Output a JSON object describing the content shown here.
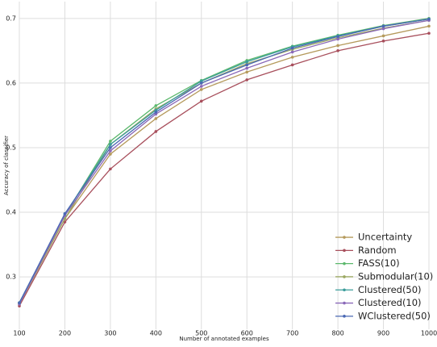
{
  "chart_data": {
    "type": "line",
    "x_label": "Number of annotated examples",
    "y_label": "Accuracy of classifier",
    "x": [
      100,
      200,
      300,
      400,
      500,
      600,
      700,
      800,
      900,
      1000
    ],
    "series": [
      {
        "name": "Uncertainty",
        "color": "#b59a5c",
        "values": [
          0.26,
          0.39,
          0.49,
          0.545,
          0.59,
          0.617,
          0.64,
          0.658,
          0.673,
          0.688
        ]
      },
      {
        "name": "Random",
        "color": "#a84f5c",
        "values": [
          0.255,
          0.385,
          0.467,
          0.525,
          0.572,
          0.605,
          0.628,
          0.65,
          0.665,
          0.677
        ]
      },
      {
        "name": "FASS(10)",
        "color": "#5cb86c",
        "values": [
          0.26,
          0.395,
          0.51,
          0.565,
          0.604,
          0.635,
          0.657,
          0.674,
          0.689,
          0.7
        ]
      },
      {
        "name": "Submodular(10)",
        "color": "#9ba862",
        "values": [
          0.258,
          0.39,
          0.505,
          0.56,
          0.6,
          0.63,
          0.652,
          0.67,
          0.685,
          0.697
        ]
      },
      {
        "name": "Clustered(50)",
        "color": "#3a9c9a",
        "values": [
          0.26,
          0.397,
          0.505,
          0.558,
          0.603,
          0.633,
          0.656,
          0.673,
          0.688,
          0.699
        ]
      },
      {
        "name": "Clustered(10)",
        "color": "#8a68b8",
        "values": [
          0.258,
          0.395,
          0.495,
          0.552,
          0.595,
          0.623,
          0.648,
          0.668,
          0.684,
          0.697
        ]
      },
      {
        "name": "WClustered(50)",
        "color": "#4a68b4",
        "values": [
          0.26,
          0.398,
          0.5,
          0.555,
          0.6,
          0.628,
          0.654,
          0.672,
          0.688,
          0.699
        ]
      }
    ],
    "xlim": [
      100,
      1000
    ],
    "xticks": [
      100,
      200,
      300,
      400,
      500,
      600,
      700,
      800,
      900,
      1000
    ],
    "ylim": [
      0.219,
      0.726
    ],
    "yticks": [
      0.3,
      0.4,
      0.5,
      0.6,
      0.7
    ],
    "grid": true,
    "legend": "lower right"
  }
}
